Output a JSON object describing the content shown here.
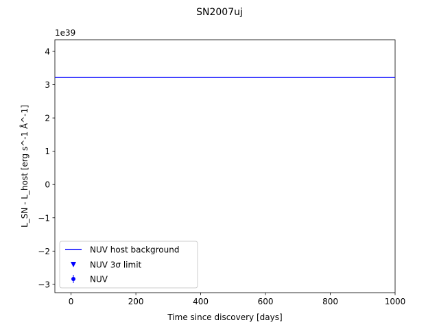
{
  "chart_data": {
    "type": "line",
    "title": "SN2007uj",
    "xlabel": "Time since discovery [days]",
    "ylabel": "L_SN - L_host [erg s^-1 Å^-1]",
    "y_offset_label": "1e39",
    "y_scale_factor": 1e+39,
    "xlim": [
      -50,
      1000
    ],
    "ylim": [
      -3.25,
      4.35
    ],
    "x_ticks": [
      0,
      200,
      400,
      600,
      800,
      1000
    ],
    "x_tick_labels": [
      "0",
      "200",
      "400",
      "600",
      "800",
      "1000"
    ],
    "y_ticks": [
      -3,
      -2,
      -1,
      0,
      1,
      2,
      3,
      4
    ],
    "y_tick_labels": [
      "−3",
      "−2",
      "−1",
      "0",
      "1",
      "2",
      "3",
      "4"
    ],
    "grid": false,
    "legend_position": "lower-left",
    "series": [
      {
        "name": "NUV host background",
        "kind": "hline",
        "y": 3.22,
        "color": "#0000ff"
      },
      {
        "name": "NUV 3σ limit",
        "kind": "upper-limit-marker",
        "x": [],
        "y": [],
        "color": "#0000ff"
      },
      {
        "name": "NUV",
        "kind": "errorbar-points",
        "x": [],
        "y": [],
        "color": "#0000ff"
      }
    ]
  }
}
